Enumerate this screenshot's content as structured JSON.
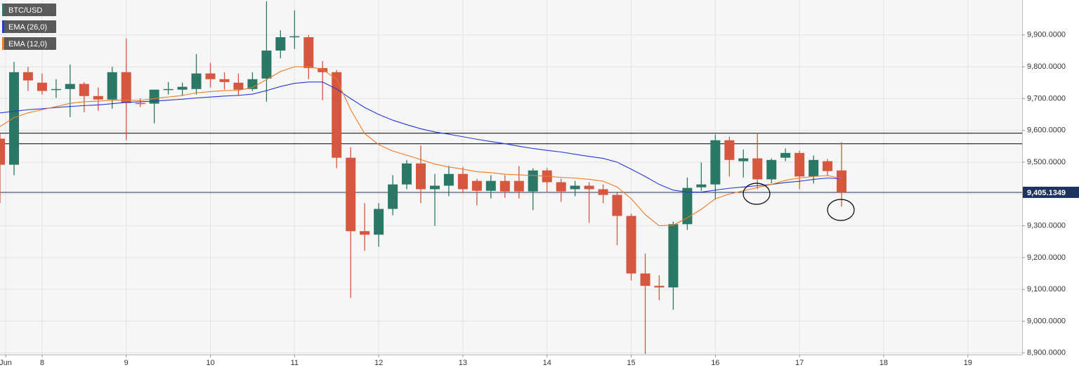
{
  "chart_data": {
    "type": "candlestick",
    "x": [
      7.5,
      7.667,
      7.833,
      8,
      8.167,
      8.333,
      8.5,
      8.667,
      8.833,
      9,
      9.167,
      9.333,
      9.5,
      9.667,
      9.833,
      10,
      10.167,
      10.333,
      10.5,
      10.667,
      10.833,
      11,
      11.167,
      11.333,
      11.5,
      11.667,
      11.833,
      12,
      12.167,
      12.333,
      12.5,
      12.667,
      12.833,
      13,
      13.167,
      13.333,
      13.5,
      13.667,
      13.833,
      14,
      14.167,
      14.333,
      14.5,
      14.667,
      14.833,
      15,
      15.167,
      15.333,
      15.5,
      15.667,
      15.833,
      16,
      16.167,
      16.333,
      16.5,
      16.667,
      16.833,
      17,
      17.167,
      17.333,
      17.5
    ],
    "xlim": [
      7.5,
      19.645
    ],
    "xticks": [
      {
        "value": 7.567,
        "label": "Jun"
      },
      8,
      9,
      10,
      11,
      12,
      13,
      14,
      15,
      16,
      17,
      18,
      19
    ],
    "ylim": [
      8895,
      10010
    ],
    "yticks": [
      {
        "value": 8900,
        "label": "8,900.0000"
      },
      {
        "value": 9000,
        "label": "9,000.0000"
      },
      {
        "value": 9100,
        "label": "9,100.0000"
      },
      {
        "value": 9200,
        "label": "9,200.0000"
      },
      {
        "value": 9300,
        "label": "9,300.0000"
      },
      {
        "value": 9400,
        "label": "9,400.0000"
      },
      {
        "value": 9500,
        "label": "9,500.0000"
      },
      {
        "value": 9600,
        "label": "9,600.0000"
      },
      {
        "value": 9700,
        "label": "9,700.0000"
      },
      {
        "value": 9800,
        "label": "9,800.0000"
      },
      {
        "value": 9900,
        "label": "9,900.0000"
      }
    ],
    "grid": true,
    "series": [
      {
        "name": "BTC/USD",
        "type": "candlestick",
        "up_color": "#2b7866",
        "down_color": "#d6573f",
        "open": [
          9574,
          9492,
          9783,
          9750,
          9728,
          9730,
          9746,
          9708,
          9697,
          9783,
          9686,
          9684,
          9728,
          9728,
          9730,
          9779,
          9761,
          9750,
          9730,
          9763,
          9851,
          9893,
          9893,
          9796,
          9783,
          9514,
          9283,
          9272,
          9353,
          9430,
          9496,
          9415,
          9426,
          9463,
          9441,
          9410,
          9441,
          9441,
          9408,
          9474,
          9437,
          9415,
          9426,
          9415,
          9397,
          9331,
          9150,
          9111,
          9106,
          9305,
          9421,
          9430,
          9569,
          9503,
          9512,
          9446,
          9514,
          9529,
          9455,
          9503,
          9474
        ],
        "high": [
          9590,
          9816,
          9800,
          9779,
          9761,
          9807,
          9752,
          9735,
          9800,
          9889,
          9701,
          9728,
          9752,
          9750,
          9840,
          9812,
          9783,
          9779,
          9783,
          10006,
          9915,
          9977,
          9900,
          9818,
          9790,
          9547,
          9371,
          9371,
          9459,
          9507,
          9552,
          9463,
          9488,
          9485,
          9448,
          9459,
          9459,
          9488,
          9481,
          9481,
          9448,
          9441,
          9437,
          9430,
          9404,
          9338,
          9212,
          9144,
          9313,
          9452,
          9499,
          9587,
          9580,
          9540,
          9591,
          9512,
          9543,
          9536,
          9521,
          9510,
          9563
        ],
        "low": [
          9371,
          9459,
          9724,
          9713,
          9702,
          9642,
          9657,
          9662,
          9668,
          9569,
          9673,
          9622,
          9713,
          9708,
          9713,
          9735,
          9728,
          9708,
          9724,
          9690,
          9827,
          9856,
          9761,
          9695,
          9481,
          9073,
          9221,
          9234,
          9333,
          9415,
          9371,
          9300,
          9393,
          9402,
          9364,
          9386,
          9388,
          9386,
          9349,
          9404,
          9375,
          9393,
          9309,
          9371,
          9239,
          9128,
          8897,
          9066,
          9036,
          9287,
          9410,
          9382,
          9455,
          9452,
          9415,
          9433,
          9503,
          9415,
          9433,
          9459,
          9360
        ],
        "close": [
          9492,
          9783,
          9757,
          9724,
          9730,
          9746,
          9708,
          9697,
          9783,
          9686,
          9684,
          9728,
          9730,
          9737,
          9779,
          9761,
          9752,
          9728,
          9761,
          9851,
          9893,
          9896,
          9796,
          9783,
          9514,
          9283,
          9272,
          9353,
          9430,
          9496,
          9415,
          9426,
          9463,
          9415,
          9410,
          9441,
          9408,
          9408,
          9474,
          9437,
          9408,
          9426,
          9415,
          9397,
          9331,
          9150,
          9111,
          9106,
          9305,
          9419,
          9430,
          9569,
          9507,
          9512,
          9446,
          9507,
          9529,
          9455,
          9507,
          9472,
          9405.1349
        ]
      },
      {
        "name": "EMA (26,0)",
        "type": "line",
        "color": "#2438d6",
        "values": [
          9655,
          9660,
          9665,
          9668,
          9672,
          9675,
          9678,
          9680,
          9684,
          9688,
          9690,
          9692,
          9695,
          9698,
          9702,
          9705,
          9708,
          9710,
          9714,
          9725,
          9738,
          9748,
          9752,
          9752,
          9730,
          9700,
          9672,
          9650,
          9632,
          9618,
          9605,
          9595,
          9588,
          9580,
          9572,
          9565,
          9558,
          9550,
          9543,
          9537,
          9532,
          9525,
          9518,
          9512,
          9500,
          9478,
          9455,
          9430,
          9412,
          9406,
          9406,
          9412,
          9418,
          9422,
          9426,
          9430,
          9436,
          9440,
          9446,
          9450,
          9448
        ]
      },
      {
        "name": "EMA (12,0)",
        "type": "line",
        "color": "#ef7a22",
        "values": [
          9612,
          9640,
          9655,
          9665,
          9675,
          9685,
          9690,
          9692,
          9695,
          9695,
          9694,
          9700,
          9705,
          9710,
          9718,
          9722,
          9725,
          9726,
          9735,
          9760,
          9785,
          9800,
          9800,
          9792,
          9760,
          9665,
          9590,
          9555,
          9535,
          9522,
          9508,
          9494,
          9485,
          9478,
          9470,
          9467,
          9462,
          9460,
          9458,
          9456,
          9452,
          9450,
          9446,
          9440,
          9422,
          9385,
          9335,
          9300,
          9302,
          9325,
          9352,
          9385,
          9400,
          9410,
          9420,
          9430,
          9443,
          9450,
          9455,
          9458,
          9448
        ]
      }
    ],
    "hlines": [
      {
        "value": 9591,
        "color": "#000000"
      },
      {
        "value": 9558,
        "color": "#000000"
      }
    ],
    "price_line": {
      "value": 9405.1349,
      "label": "9,405.1349",
      "color": "#1e3460"
    }
  }
}
